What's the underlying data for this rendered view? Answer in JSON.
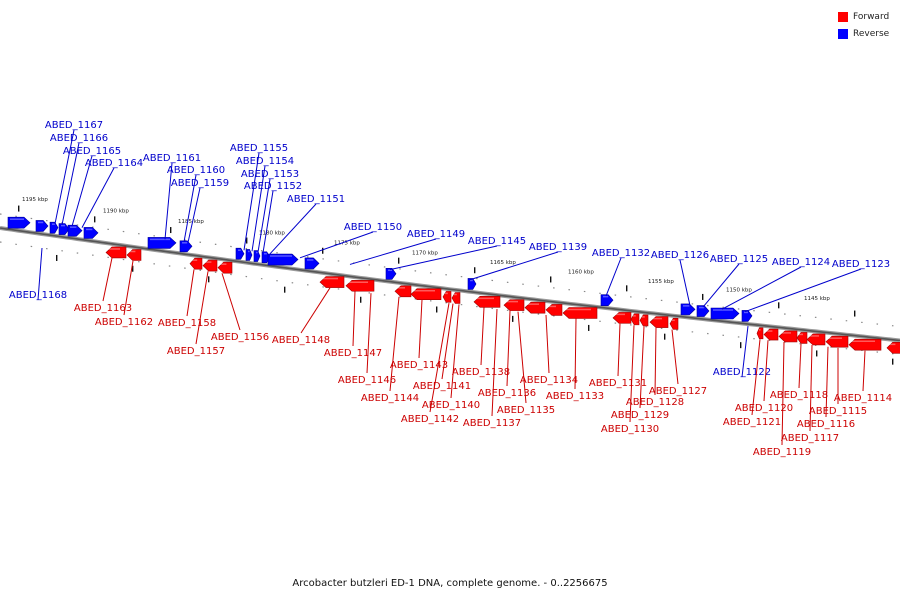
{
  "legend": {
    "forward_label": "Forward",
    "reverse_label": "Reverse",
    "forward_color": "#ff0000",
    "reverse_color": "#0000ff"
  },
  "footer_text": "Arcobacter butzleri ED-1 DNA, complete genome. - 0..2256675",
  "ticks": [
    "1195 kbp",
    "1190 kbp",
    "1185 kbp",
    "1180 kbp",
    "1175 kbp",
    "1170 kbp",
    "1165 kbp",
    "1160 kbp",
    "1155 kbp",
    "1150 kbp",
    "1145 kbp"
  ],
  "genes_reverse": [
    "ABED_1168",
    "ABED_1167",
    "ABED_1166",
    "ABED_1165",
    "ABED_1164",
    "ABED_1161",
    "ABED_1160",
    "ABED_1159",
    "ABED_1155",
    "ABED_1154",
    "ABED_1153",
    "ABED_1152",
    "ABED_1151",
    "ABED_1150",
    "ABED_1149",
    "ABED_1145",
    "ABED_1139",
    "ABED_1132",
    "ABED_1126",
    "ABED_1125",
    "ABED_1124",
    "ABED_1123",
    "ABED_1122"
  ],
  "genes_forward": [
    "ABED_1163",
    "ABED_1162",
    "ABED_1158",
    "ABED_1157",
    "ABED_1156",
    "ABED_1148",
    "ABED_1147",
    "ABED_1146",
    "ABED_1144",
    "ABED_1143",
    "ABED_1142",
    "ABED_1141",
    "ABED_1140",
    "ABED_1138",
    "ABED_1137",
    "ABED_1136",
    "ABED_1135",
    "ABED_1134",
    "ABED_1133",
    "ABED_1131",
    "ABED_1130",
    "ABED_1129",
    "ABED_1128",
    "ABED_1127",
    "ABED_1121",
    "ABED_1120",
    "ABED_1119",
    "ABED_1118",
    "ABED_1117",
    "ABED_1116",
    "ABED_1115",
    "ABED_1114"
  ]
}
